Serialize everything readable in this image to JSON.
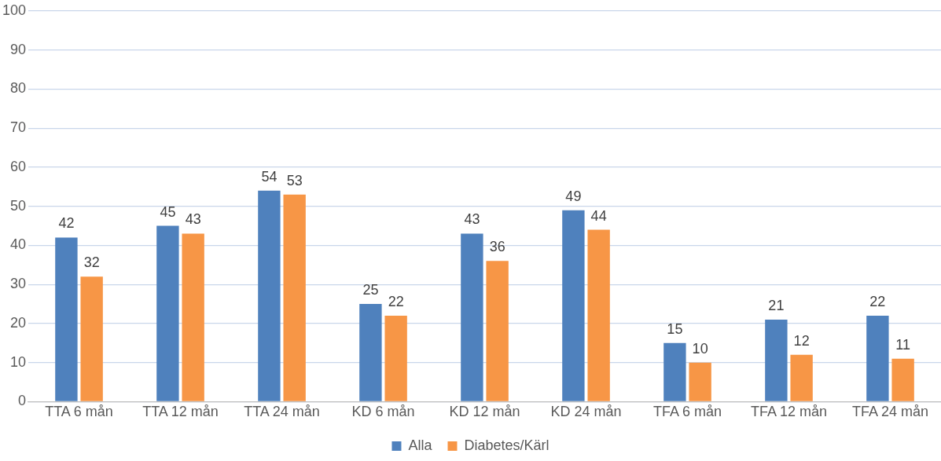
{
  "chart_data": {
    "type": "bar",
    "categories": [
      "TTA 6 mån",
      "TTA 12 mån",
      "TTA 24 mån",
      "KD 6 mån",
      "KD 12 mån",
      "KD 24 mån",
      "TFA 6 mån",
      "TFA 12 mån",
      "TFA 24 mån"
    ],
    "series": [
      {
        "name": "Alla",
        "color": "#4f81bd",
        "values": [
          42,
          45,
          54,
          25,
          43,
          49,
          15,
          21,
          22
        ]
      },
      {
        "name": "Diabetes/Kärl",
        "color": "#f79646",
        "values": [
          32,
          43,
          53,
          22,
          36,
          44,
          10,
          12,
          11
        ]
      }
    ],
    "ylim": [
      0,
      100
    ],
    "yticks": [
      0,
      10,
      20,
      30,
      40,
      50,
      60,
      70,
      80,
      90,
      100
    ],
    "grid": "y",
    "legend": "bottom",
    "data_labels": true
  }
}
